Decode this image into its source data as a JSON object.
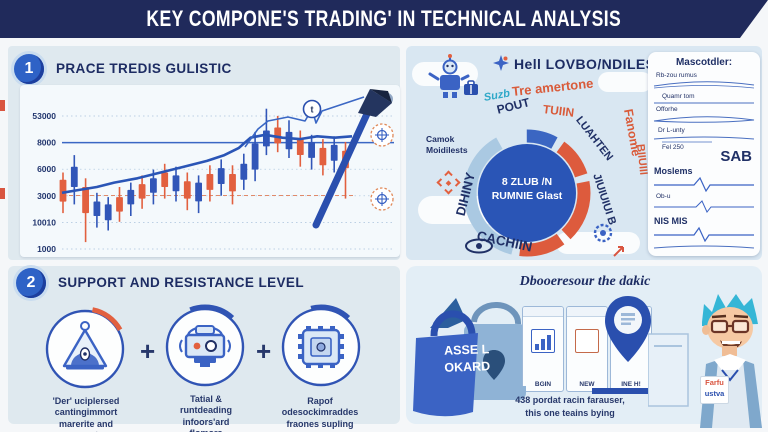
{
  "banner": {
    "title": "KEY COMPONE'S TRADING' IN TECHNICAL ANALYSIS"
  },
  "section1": {
    "number": "1",
    "title": "PRACE TREDIS GULISTIC"
  },
  "chart_data": {
    "type": "candlestick",
    "y_ticks": [
      "53000",
      "8000",
      "6000",
      "3000",
      "10010",
      "1000"
    ],
    "badge_label": "t",
    "legend": [],
    "candles": [
      [
        55,
        70,
        50,
        78,
        "d"
      ],
      [
        46,
        60,
        38,
        72,
        "u"
      ],
      [
        60,
        78,
        54,
        98,
        "d"
      ],
      [
        70,
        80,
        64,
        88,
        "u"
      ],
      [
        72,
        83,
        67,
        90,
        "u"
      ],
      [
        67,
        77,
        60,
        84,
        "d"
      ],
      [
        62,
        72,
        57,
        80,
        "u"
      ],
      [
        58,
        68,
        52,
        75,
        "d"
      ],
      [
        54,
        64,
        48,
        72,
        "u"
      ],
      [
        50,
        60,
        44,
        68,
        "d"
      ],
      [
        52,
        63,
        46,
        70,
        "u"
      ],
      [
        56,
        68,
        50,
        76,
        "d"
      ],
      [
        57,
        70,
        52,
        78,
        "u"
      ],
      [
        51,
        62,
        45,
        70,
        "d"
      ],
      [
        47,
        58,
        41,
        66,
        "u"
      ],
      [
        51,
        63,
        45,
        72,
        "d"
      ],
      [
        44,
        55,
        37,
        62,
        "u"
      ],
      [
        30,
        48,
        22,
        56,
        "u"
      ],
      [
        21,
        32,
        6,
        38,
        "u"
      ],
      [
        19,
        30,
        11,
        36,
        "d"
      ],
      [
        22,
        34,
        14,
        40,
        "u"
      ],
      [
        27,
        38,
        21,
        46,
        "d"
      ],
      [
        29,
        40,
        24,
        48,
        "u"
      ],
      [
        33,
        45,
        27,
        52,
        "d"
      ],
      [
        31,
        42,
        25,
        50,
        "u"
      ],
      [
        35,
        47,
        29,
        68,
        "d"
      ]
    ],
    "ma_line": [
      [
        0,
        64
      ],
      [
        6,
        62
      ],
      [
        12,
        60
      ],
      [
        18,
        57
      ],
      [
        26,
        54
      ],
      [
        34,
        50
      ],
      [
        42,
        46
      ],
      [
        50,
        42
      ],
      [
        56,
        38
      ],
      [
        61,
        33
      ],
      [
        65,
        26
      ],
      [
        70,
        24
      ],
      [
        76,
        26
      ],
      [
        82,
        27
      ],
      [
        88,
        25
      ],
      [
        94,
        26
      ],
      [
        100,
        25
      ]
    ],
    "signal_line": [
      [
        225,
        62
      ],
      [
        238,
        44
      ],
      [
        248,
        36
      ],
      [
        268,
        32
      ],
      [
        285,
        36
      ],
      [
        292,
        24
      ],
      [
        296,
        38
      ],
      [
        302,
        26
      ],
      [
        344,
        12
      ]
    ],
    "colors": {
      "up": "#3156b8",
      "down": "#e2603f",
      "ma": "#2a55b6",
      "grid": "#a9c2dc",
      "axis_text": "#22366e",
      "resistance": "#3a67c4",
      "support": "#e08a6a"
    }
  },
  "wheel": {
    "header": "Hell LOVBO/NDILESTS",
    "center_line1": "8 ZLUB /N",
    "center_line2": "RUMNIE Glast",
    "labels": [
      {
        "text": "Tre amertone"
      },
      {
        "text": "POUT"
      },
      {
        "text": "TUIIN"
      },
      {
        "text": "LUAHTEN"
      },
      {
        "text": "Fanome"
      },
      {
        "text": "DIHINY"
      },
      {
        "text": "CACHIIN"
      },
      {
        "text": "JIUIUIUI B"
      },
      {
        "text": "BIIUIII"
      }
    ],
    "side_label_line1": "Camok",
    "side_label_line2": "Moidilests",
    "scribble": "Suzb"
  },
  "indicator_card": {
    "title": "Mascotdler:",
    "sub_lines": [
      "Rb-zou rumus",
      "Quamr tom",
      "Offorhe",
      "Dr L-unty",
      "Fel 250"
    ],
    "big_label": "SAB",
    "row1_label": "Moslems",
    "row1_sub": "Ob-u",
    "row2_label": "NIS MIS"
  },
  "section2": {
    "number": "2",
    "title": "SUPPORT AND RESISTANCE LEVEL",
    "plus": "+",
    "items": [
      {
        "caption": "'Der' uciplersed\ncantingimmort\nmarerite and\nanaunts"
      },
      {
        "caption": "Tatial &\nruntdeading\ninfoors'ard\nflomors"
      },
      {
        "caption": "Rapof\nodesockimraddes\nfraones supling"
      }
    ]
  },
  "section3": {
    "title": "Dbooeresour the dakic",
    "bag_line1": "ASSE L",
    "bag_line2": "OKARD",
    "cards": [
      {
        "label": "BGIN"
      },
      {
        "label": "NEW"
      },
      {
        "label": "INE H!"
      }
    ],
    "person_tag_line1": "Farfu",
    "person_tag_line2": "ustva",
    "footer_line1": "438 pordat racin farauser,",
    "footer_line2": "this one teains bying"
  }
}
